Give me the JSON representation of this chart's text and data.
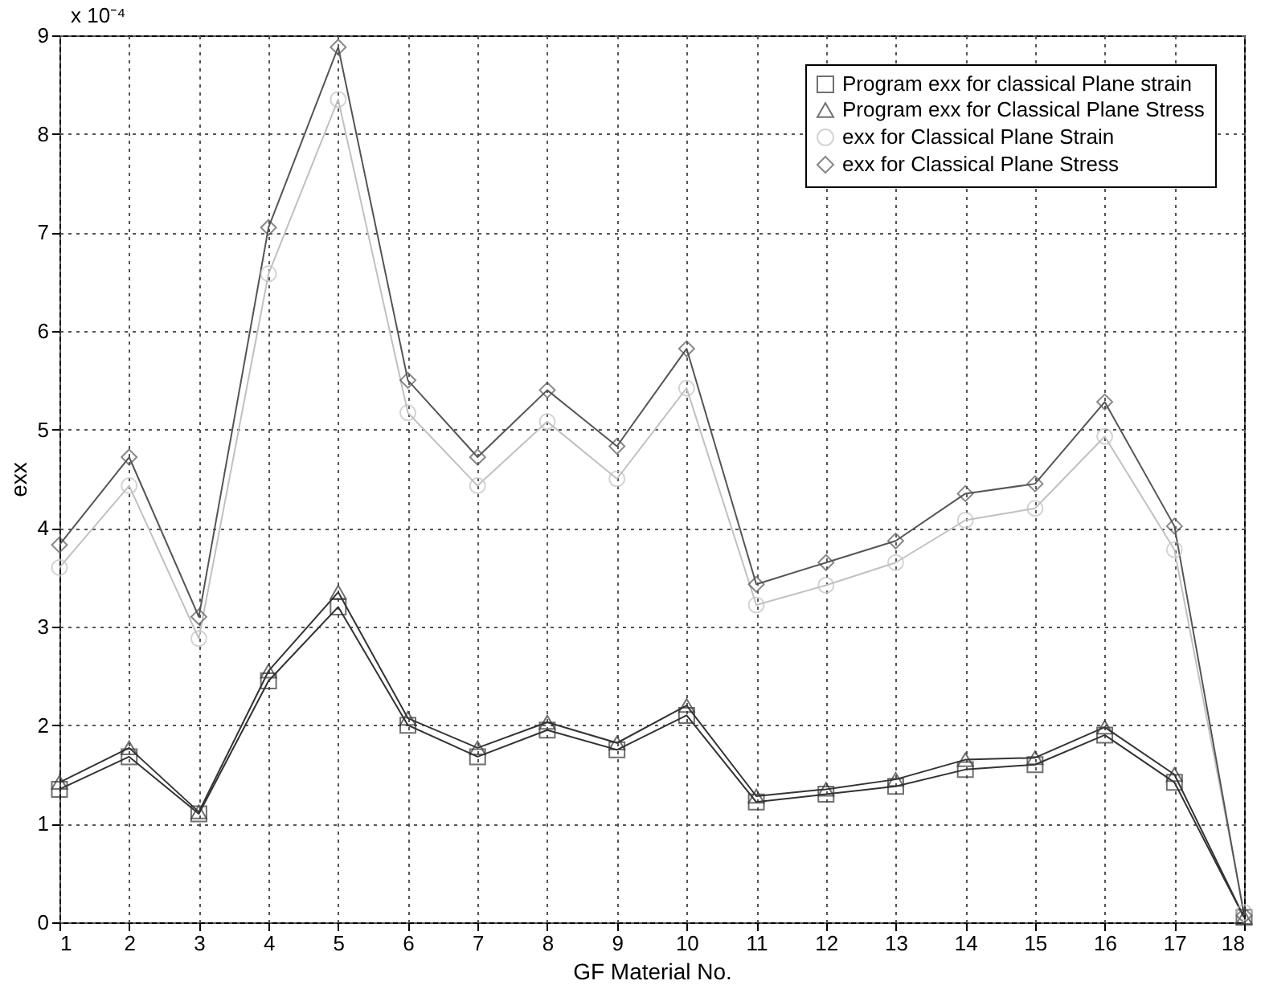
{
  "chart_data": {
    "type": "line",
    "xlabel": "GF Material No.",
    "ylabel": "exx",
    "annotations": [
      "x 10⁻⁴"
    ],
    "x": [
      1,
      2,
      3,
      4,
      5,
      6,
      7,
      8,
      9,
      10,
      11,
      12,
      13,
      14,
      15,
      16,
      17,
      18
    ],
    "xlim": [
      1,
      18
    ],
    "xticks": [
      1,
      2,
      3,
      4,
      5,
      6,
      7,
      8,
      9,
      10,
      11,
      12,
      13,
      14,
      15,
      16,
      17,
      18
    ],
    "ylim": [
      0,
      9
    ],
    "yticks": [
      0,
      1,
      2,
      3,
      4,
      5,
      6,
      7,
      8,
      9
    ],
    "grid": true,
    "legend": "top right",
    "line_style": "solid",
    "series": [
      {
        "name": "Program exx for classical Plane strain",
        "color": "#333333",
        "marker": "square",
        "values": [
          1.35,
          1.68,
          1.1,
          2.45,
          3.2,
          2.0,
          1.68,
          1.95,
          1.75,
          2.1,
          1.22,
          1.3,
          1.38,
          1.55,
          1.6,
          1.9,
          1.42,
          0.05
        ]
      },
      {
        "name": "Program exx for Classical Plane Stress",
        "color": "#333333",
        "marker": "triangle",
        "values": [
          1.42,
          1.77,
          1.12,
          2.55,
          3.35,
          2.07,
          1.77,
          2.03,
          1.82,
          2.2,
          1.28,
          1.35,
          1.45,
          1.65,
          1.67,
          1.98,
          1.5,
          0.05
        ]
      },
      {
        "name": "exx for Classical Plane Strain",
        "color": "#c0c0c0",
        "marker": "circle",
        "values": [
          3.6,
          4.43,
          2.88,
          6.58,
          8.35,
          5.17,
          4.43,
          5.08,
          4.5,
          5.42,
          3.22,
          3.42,
          3.65,
          4.08,
          4.2,
          4.93,
          3.78,
          0.1
        ]
      },
      {
        "name": "exx for Classical Plane Stress",
        "color": "#555555",
        "marker": "diamond",
        "values": [
          3.83,
          4.72,
          3.1,
          7.05,
          8.88,
          5.5,
          4.72,
          5.4,
          4.83,
          5.82,
          3.43,
          3.65,
          3.87,
          4.35,
          4.45,
          5.28,
          4.02,
          0.07
        ]
      }
    ]
  }
}
